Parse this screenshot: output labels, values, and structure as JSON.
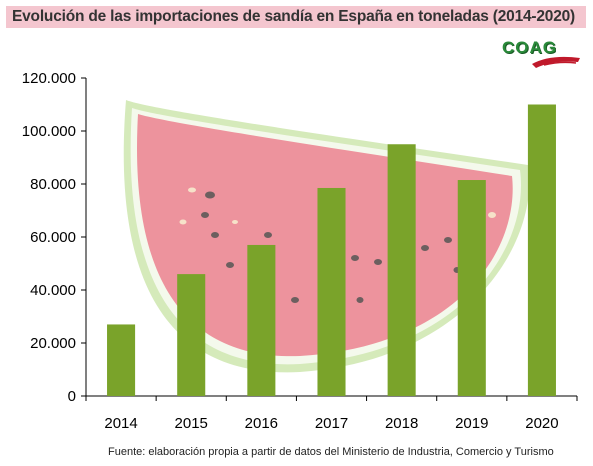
{
  "title": "Evolución de las importaciones de sandía en España en toneladas (2014-2020)",
  "logo_text": "COAG",
  "source": "Fuente: elaboración propia a partir de datos del Ministerio de Industria, Comercio y Turismo",
  "colors": {
    "bar": "#7aa32a",
    "title_band": "#f4c6cf",
    "watermelon_flesh": "#e8707a",
    "watermelon_rind": "#9bc46a"
  },
  "chart_data": {
    "type": "bar",
    "categories": [
      "2014",
      "2015",
      "2016",
      "2017",
      "2018",
      "2019",
      "2020"
    ],
    "values": [
      27000,
      46000,
      57000,
      78500,
      95000,
      81500,
      110000
    ],
    "ylim": [
      0,
      120000
    ],
    "yticks": [
      "0",
      "20.000",
      "40.000",
      "60.000",
      "80.000",
      "100.000",
      "120.000"
    ],
    "grid": false,
    "legend": "none"
  }
}
